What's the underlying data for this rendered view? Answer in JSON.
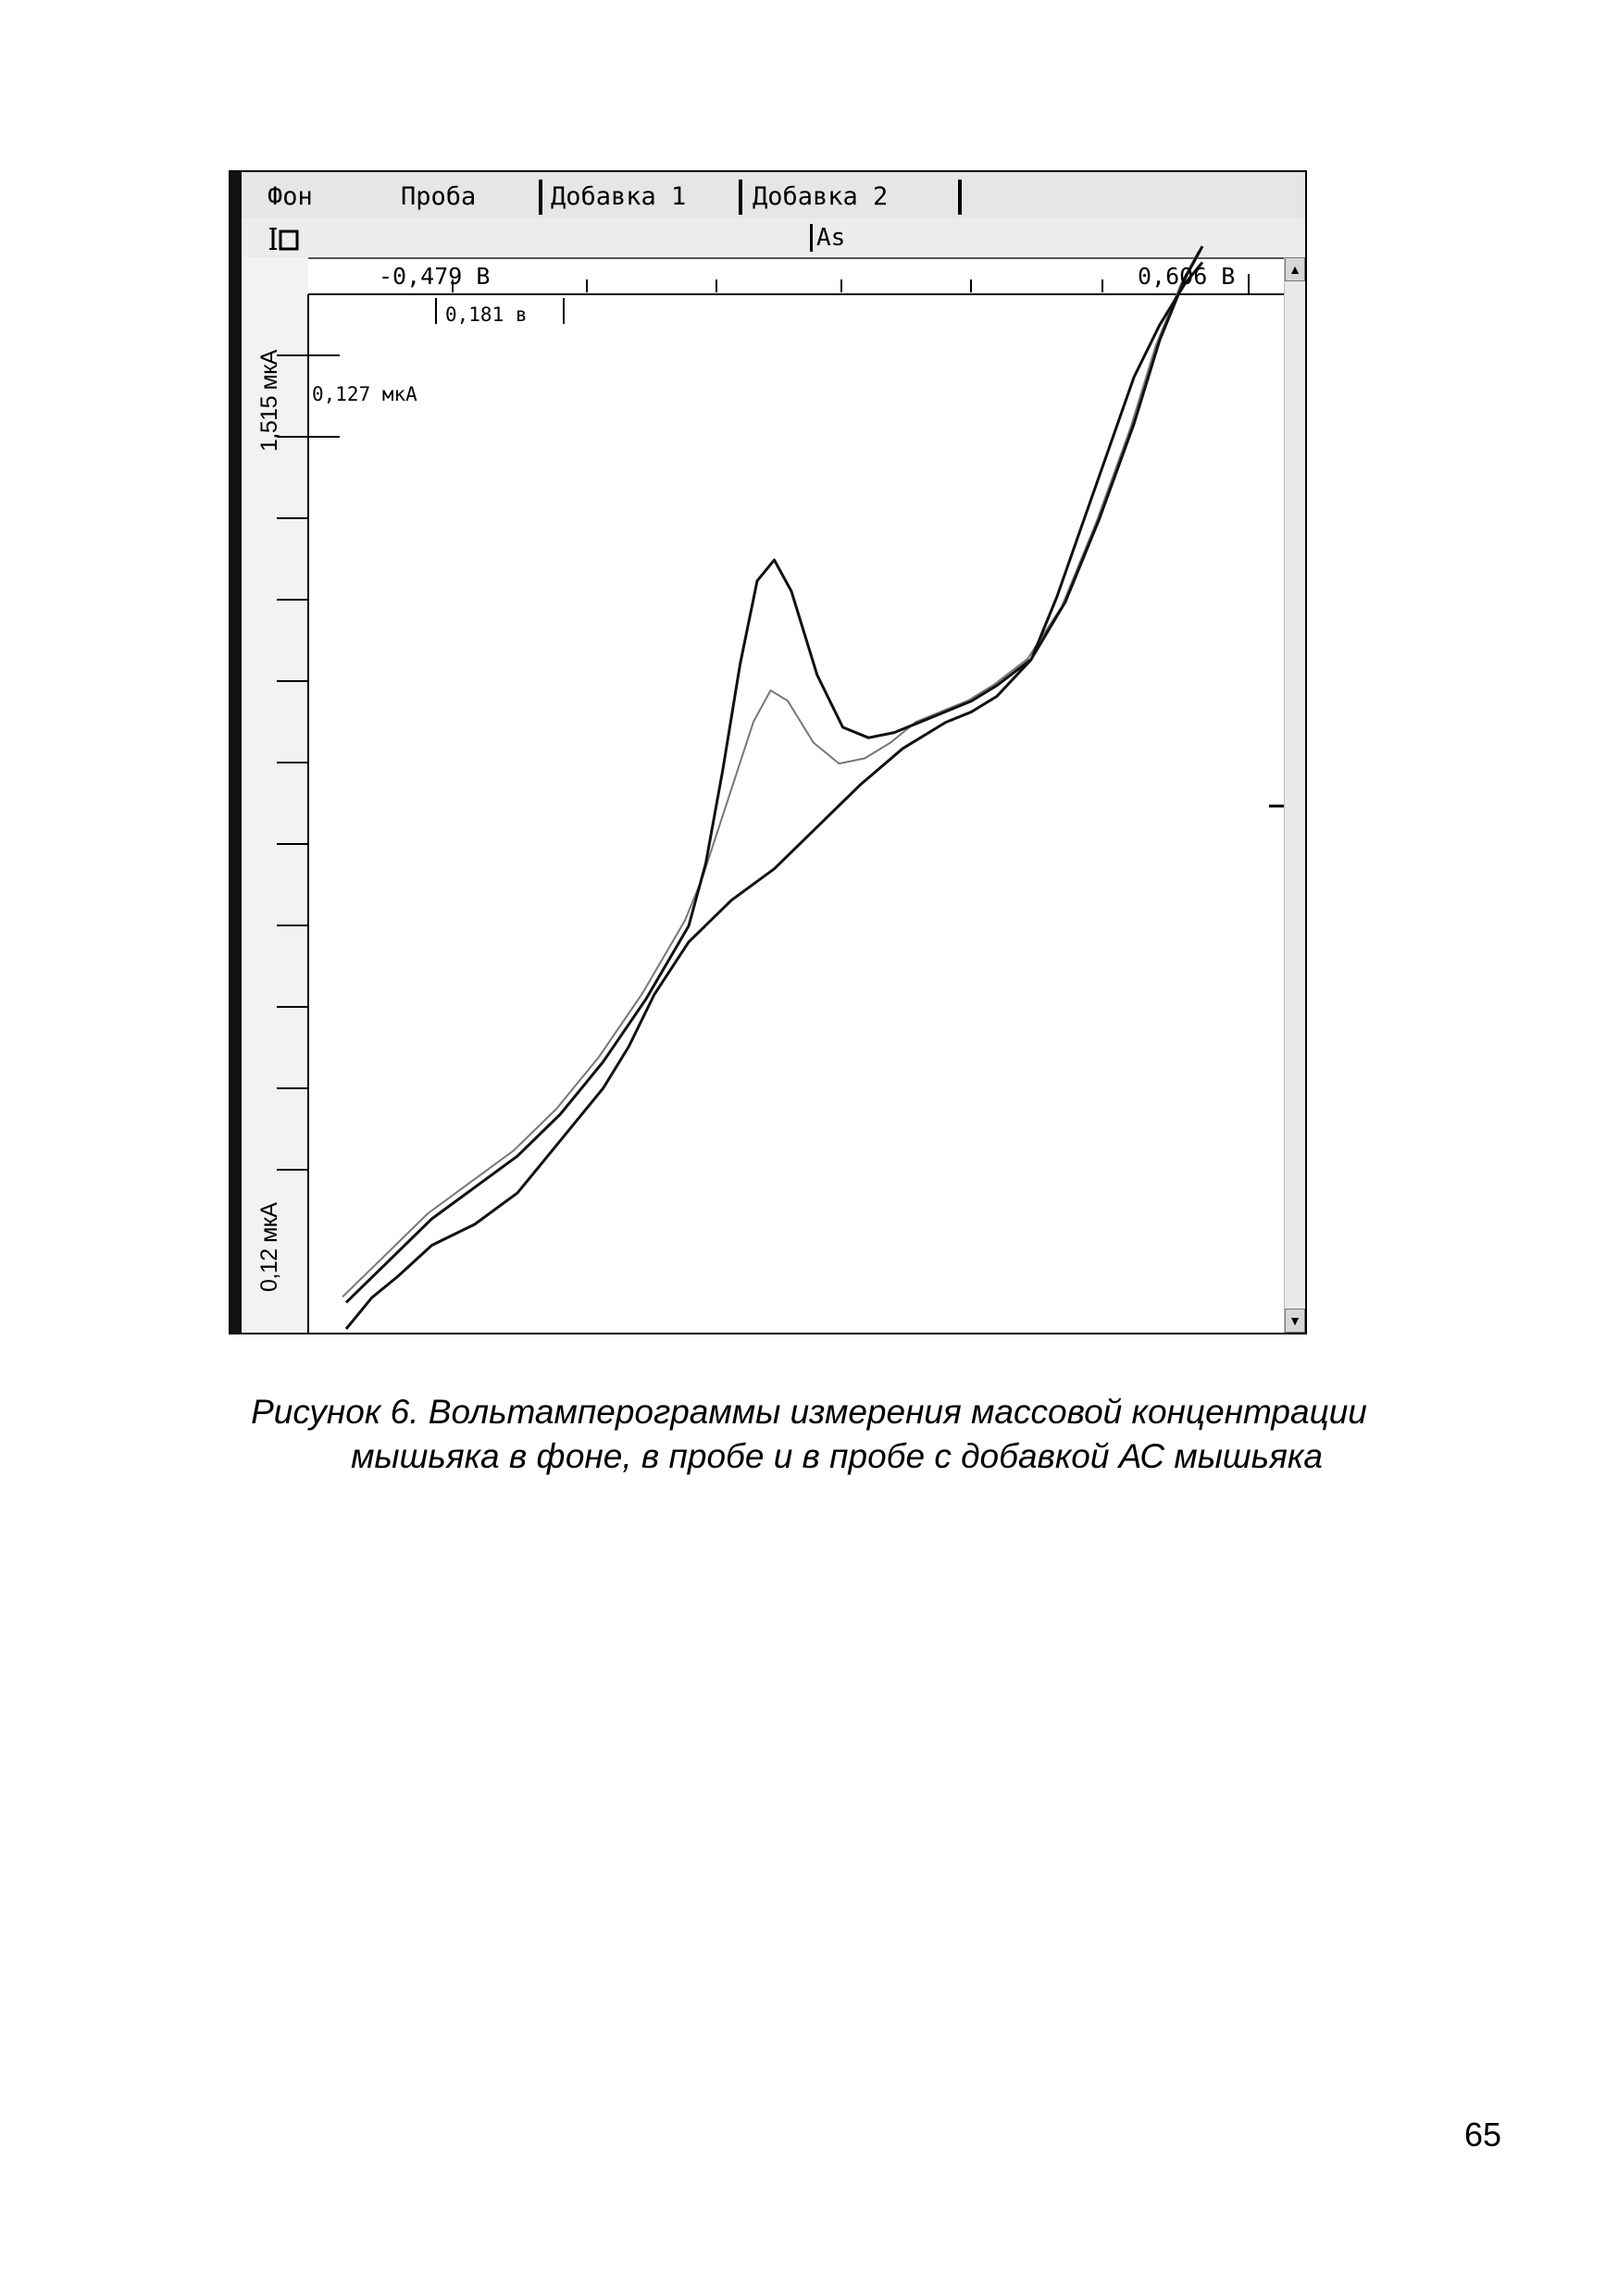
{
  "tabs": [
    {
      "label": "Фон"
    },
    {
      "label": "Проба"
    },
    {
      "label": "Добавка 1"
    },
    {
      "label": "Добавка 2"
    }
  ],
  "toolbar": {
    "element": "As"
  },
  "cursors": {
    "x_left": "-0,479 В",
    "x_right": "0,606 В",
    "x_width": "0,181 в",
    "y_scale": "0,127 мкА"
  },
  "axis_labels": {
    "y_top": "1,515 мкА",
    "y_bottom": "0,12 мкА"
  },
  "colors": {
    "trace_dark": "#111111",
    "trace_light": "#777777",
    "ui_grey": "#e6e6e6"
  },
  "caption": {
    "line1": "Рисунок 6. Вольтамперограммы измерения массовой концентрации",
    "line2": "мышьяка в фоне, в  пробе  и в пробе с добавкой АС мышьяка"
  },
  "page_number": "65",
  "chart_data": {
    "type": "line",
    "x_range_label": [
      "-0,479 В",
      "0,606 В"
    ],
    "y_range_label": [
      "0,12 мкА",
      "1,515 мкА"
    ],
    "grid": false,
    "legend": "none",
    "series": [
      {
        "x": [
          0,
          0.05,
          0.1,
          0.15,
          0.2,
          0.25,
          0.3,
          0.35,
          0.4,
          0.42,
          0.44,
          0.46,
          0.48,
          0.5,
          0.52,
          0.55,
          0.58,
          0.61,
          0.64,
          0.67,
          0.7,
          0.73,
          0.76,
          0.8,
          0.84,
          0.88,
          0.92,
          0.95,
          0.98,
          1.0
        ],
        "y": [
          0.02,
          0.06,
          0.1,
          0.13,
          0.16,
          0.2,
          0.25,
          0.31,
          0.38,
          0.42,
          0.47,
          0.52,
          0.57,
          0.6,
          0.59,
          0.55,
          0.53,
          0.535,
          0.55,
          0.57,
          0.58,
          0.59,
          0.605,
          0.63,
          0.68,
          0.76,
          0.85,
          0.93,
          0.99,
          1.02
        ]
      },
      {
        "x": [
          0,
          0.05,
          0.1,
          0.15,
          0.2,
          0.25,
          0.3,
          0.35,
          0.4,
          0.42,
          0.44,
          0.46,
          0.48,
          0.5,
          0.52,
          0.55,
          0.58,
          0.61,
          0.64,
          0.67,
          0.7,
          0.73,
          0.76,
          0.8,
          0.84,
          0.88,
          0.92,
          0.95,
          0.98,
          1.0
        ],
        "y": [
          0.02,
          0.06,
          0.1,
          0.13,
          0.16,
          0.2,
          0.25,
          0.31,
          0.38,
          0.44,
          0.53,
          0.63,
          0.71,
          0.73,
          0.7,
          0.62,
          0.57,
          0.56,
          0.565,
          0.575,
          0.585,
          0.595,
          0.61,
          0.635,
          0.69,
          0.77,
          0.86,
          0.94,
          1.0,
          1.03
        ]
      },
      {
        "x": [
          0,
          0.03,
          0.06,
          0.1,
          0.15,
          0.2,
          0.25,
          0.3,
          0.33,
          0.36,
          0.4,
          0.45,
          0.5,
          0.55,
          0.6,
          0.65,
          0.7,
          0.73,
          0.76,
          0.8,
          0.83,
          0.86,
          0.89,
          0.92,
          0.95,
          0.98,
          1.0
        ],
        "y": [
          0.0,
          0.03,
          0.05,
          0.08,
          0.1,
          0.13,
          0.18,
          0.23,
          0.27,
          0.32,
          0.37,
          0.41,
          0.44,
          0.48,
          0.52,
          0.555,
          0.58,
          0.59,
          0.605,
          0.64,
          0.7,
          0.77,
          0.84,
          0.91,
          0.96,
          1.0,
          1.02
        ]
      }
    ]
  }
}
